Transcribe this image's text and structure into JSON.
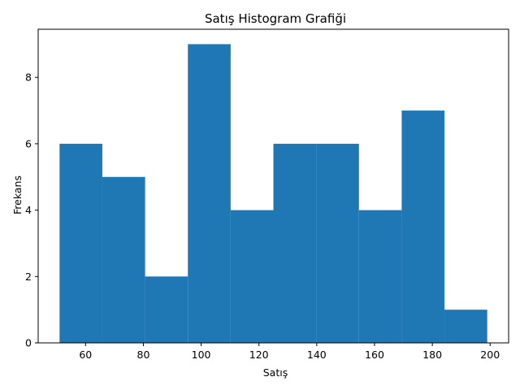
{
  "chart_data": {
    "type": "bar",
    "subtype": "histogram",
    "title": "Satış Histogram Grafiği",
    "xlabel": "Satış",
    "ylabel": "Frekans",
    "bin_edges": [
      51,
      65.8,
      80.6,
      95.4,
      110.2,
      125,
      139.8,
      154.6,
      169.4,
      184.2,
      199
    ],
    "values": [
      6,
      5,
      2,
      9,
      4,
      6,
      6,
      4,
      7,
      1
    ],
    "xlim": [
      43.6,
      206.4
    ],
    "ylim": [
      0,
      9.45
    ],
    "xticks": [
      60,
      80,
      100,
      120,
      140,
      160,
      180,
      200
    ],
    "yticks": [
      0,
      2,
      4,
      6,
      8
    ],
    "bar_color": "#1f77b4",
    "grid": false,
    "legend": "none"
  }
}
